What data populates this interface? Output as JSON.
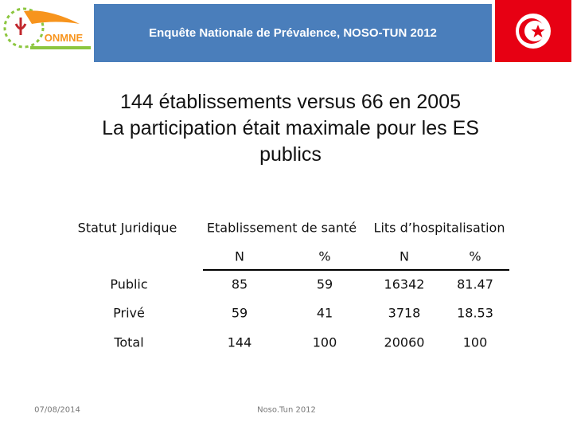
{
  "header": {
    "title": "Enquête Nationale de Prévalence, NOSO-TUN 2012",
    "logo_text": "ONMNE"
  },
  "heading": {
    "lines": [
      "144 établissements versus 66 en 2005",
      "La participation était maximale pour les ES",
      "publics"
    ]
  },
  "table": {
    "headers": [
      "Statut Juridique",
      "Etablissement de santé",
      "Lits d’hospitalisation"
    ],
    "subheaders": [
      "N",
      "%",
      "N",
      "%"
    ],
    "rows": [
      [
        "Public",
        85,
        59,
        16342,
        81.47
      ],
      [
        "Privé",
        59,
        41,
        3718,
        18.53
      ],
      [
        "Total",
        144,
        100,
        20060,
        100
      ]
    ]
  },
  "footer": {
    "date": "07/08/2014",
    "source": "Noso.Tun 2012"
  }
}
